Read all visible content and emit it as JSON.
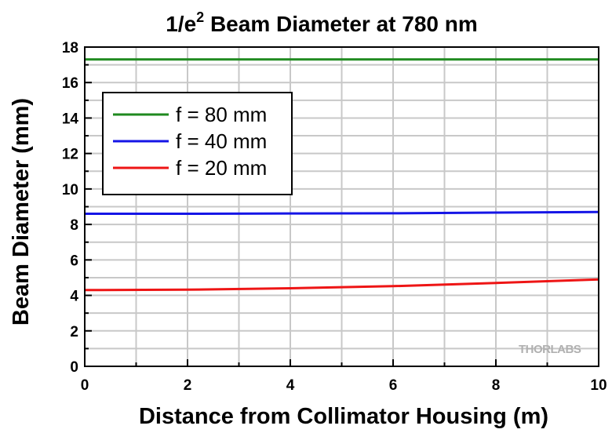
{
  "chart_data": {
    "type": "line",
    "title_main": "1/e",
    "title_sup": "2",
    "title_rest": " Beam Diameter at 780 nm",
    "xlabel": "Distance from Collimator Housing (m)",
    "ylabel": "Beam Diameter (mm)",
    "xlim": [
      0,
      10
    ],
    "ylim": [
      0,
      18
    ],
    "xticks": [
      0,
      2,
      4,
      6,
      8,
      10
    ],
    "yticks": [
      0,
      2,
      4,
      6,
      8,
      10,
      12,
      14,
      16,
      18
    ],
    "grid": true,
    "legend_position": "top-left",
    "watermark": "THORLABS",
    "series": [
      {
        "name": "f = 80 mm",
        "color": "#1f8a1f",
        "x": [
          0,
          10
        ],
        "y": [
          17.3,
          17.3
        ]
      },
      {
        "name": "f = 40 mm",
        "color": "#1515e6",
        "x": [
          0,
          2,
          4,
          6,
          8,
          10
        ],
        "y": [
          8.6,
          8.6,
          8.62,
          8.63,
          8.67,
          8.7
        ]
      },
      {
        "name": "f = 20 mm",
        "color": "#ee1515",
        "x": [
          0,
          2,
          4,
          6,
          8,
          10
        ],
        "y": [
          4.3,
          4.32,
          4.4,
          4.52,
          4.7,
          4.9
        ]
      }
    ]
  }
}
